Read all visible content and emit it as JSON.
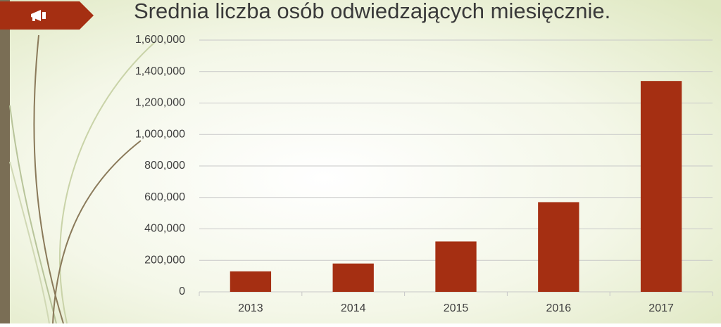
{
  "chart_data": {
    "type": "bar",
    "title": "Srednia liczba osób odwiedzających miesięcznie.",
    "categories": [
      "2013",
      "2014",
      "2015",
      "2016",
      "2017"
    ],
    "values": [
      130000,
      180000,
      320000,
      570000,
      1340000
    ],
    "color": "#a52f12",
    "ylim": [
      0,
      1600000
    ],
    "yticks": [
      0,
      {
        "value": 200000,
        "label": "200,000"
      },
      {
        "value": 400000,
        "label": "400,000"
      },
      {
        "value": 600000,
        "label": "600,000"
      },
      {
        "value": 800000,
        "label": "800,000"
      },
      {
        "value": 1000000,
        "label": "1,000,000"
      },
      {
        "value": 1200000,
        "label": "1,200,000"
      },
      {
        "value": 1400000,
        "label": "1,400,000"
      },
      {
        "value": 1600000,
        "label": "1,600,000"
      }
    ],
    "grid": true
  }
}
